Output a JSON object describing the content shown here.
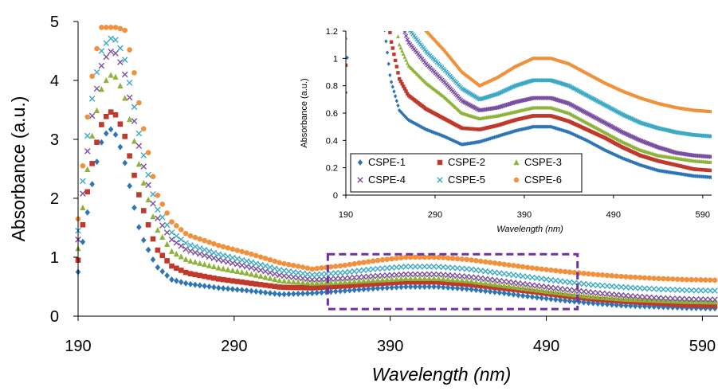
{
  "chart_data": [
    {
      "id": "main",
      "type": "scatter",
      "title": "",
      "xlabel": "Wavelength (nm)",
      "ylabel": "Absorbance (a.u.)",
      "xlim": [
        190,
        600
      ],
      "ylim": [
        0,
        5
      ],
      "x_ticks": [
        190,
        290,
        390,
        490,
        590
      ],
      "y_ticks": [
        0,
        1,
        2,
        3,
        4,
        5
      ],
      "grid": false,
      "legend": "none",
      "annotations": [
        {
          "type": "dashed-rectangle",
          "color": "#7030A0",
          "x_range": [
            350,
            510
          ],
          "y_range": [
            0.12,
            1.05
          ]
        }
      ],
      "series": [
        {
          "name": "CSPE-1",
          "color": "#2E75B6",
          "marker": "diamond",
          "x": [
            190,
            195,
            200,
            205,
            210,
            215,
            220,
            225,
            230,
            240,
            250,
            260,
            280,
            300,
            320,
            340,
            360,
            380,
            400,
            420,
            440,
            460,
            480,
            500,
            520,
            540,
            560,
            580,
            600
          ],
          "y": [
            0.75,
            1.6,
            2.4,
            2.95,
            3.2,
            3.05,
            2.6,
            1.95,
            1.4,
            0.85,
            0.62,
            0.55,
            0.48,
            0.43,
            0.37,
            0.39,
            0.43,
            0.47,
            0.5,
            0.5,
            0.46,
            0.4,
            0.33,
            0.27,
            0.22,
            0.18,
            0.16,
            0.14,
            0.13
          ]
        },
        {
          "name": "CSPE-2",
          "color": "#C0392B",
          "marker": "square",
          "x": [
            190,
            195,
            200,
            205,
            210,
            215,
            220,
            225,
            230,
            240,
            250,
            260,
            280,
            300,
            320,
            340,
            360,
            380,
            400,
            420,
            440,
            460,
            480,
            500,
            520,
            540,
            560,
            580,
            600
          ],
          "y": [
            0.95,
            1.95,
            2.75,
            3.25,
            3.48,
            3.4,
            3.05,
            2.5,
            1.95,
            1.15,
            0.85,
            0.73,
            0.63,
            0.56,
            0.49,
            0.48,
            0.51,
            0.55,
            0.58,
            0.58,
            0.54,
            0.48,
            0.42,
            0.35,
            0.29,
            0.25,
            0.22,
            0.19,
            0.18
          ]
        },
        {
          "name": "CSPE-3",
          "color": "#8DB33B",
          "marker": "triangle",
          "x": [
            190,
            195,
            200,
            205,
            210,
            215,
            220,
            225,
            230,
            240,
            250,
            260,
            280,
            300,
            320,
            340,
            360,
            380,
            400,
            420,
            440,
            460,
            480,
            500,
            520,
            540,
            560,
            580,
            600
          ],
          "y": [
            1.15,
            2.3,
            3.25,
            3.85,
            4.1,
            4.05,
            3.7,
            3.1,
            2.45,
            1.5,
            1.1,
            0.95,
            0.82,
            0.72,
            0.6,
            0.56,
            0.58,
            0.61,
            0.64,
            0.64,
            0.6,
            0.53,
            0.46,
            0.39,
            0.33,
            0.29,
            0.27,
            0.25,
            0.24
          ]
        },
        {
          "name": "CSPE-4",
          "color": "#7B4FA0",
          "marker": "x",
          "x": [
            190,
            195,
            200,
            205,
            210,
            215,
            220,
            225,
            230,
            240,
            250,
            260,
            280,
            300,
            320,
            340,
            360,
            380,
            400,
            420,
            440,
            460,
            480,
            500,
            520,
            540,
            560,
            580,
            600
          ],
          "y": [
            1.3,
            2.6,
            3.6,
            4.25,
            4.5,
            4.45,
            4.1,
            3.45,
            2.75,
            1.7,
            1.3,
            1.12,
            0.96,
            0.83,
            0.69,
            0.62,
            0.64,
            0.68,
            0.71,
            0.71,
            0.67,
            0.6,
            0.53,
            0.46,
            0.4,
            0.35,
            0.31,
            0.29,
            0.28
          ]
        },
        {
          "name": "CSPE-5",
          "color": "#3DA9C4",
          "marker": "x",
          "x": [
            190,
            195,
            200,
            205,
            210,
            215,
            220,
            225,
            230,
            240,
            250,
            260,
            280,
            300,
            320,
            340,
            360,
            380,
            400,
            420,
            440,
            460,
            480,
            500,
            520,
            540,
            560,
            580,
            600
          ],
          "y": [
            1.45,
            2.85,
            3.9,
            4.5,
            4.72,
            4.68,
            4.35,
            3.7,
            2.95,
            1.85,
            1.42,
            1.22,
            1.05,
            0.92,
            0.78,
            0.7,
            0.74,
            0.8,
            0.84,
            0.84,
            0.8,
            0.73,
            0.66,
            0.59,
            0.53,
            0.49,
            0.46,
            0.44,
            0.43
          ]
        },
        {
          "name": "CSPE-6",
          "color": "#F0913D",
          "marker": "circle",
          "x": [
            190,
            195,
            200,
            205,
            210,
            215,
            220,
            225,
            230,
            240,
            250,
            260,
            280,
            300,
            320,
            340,
            360,
            380,
            400,
            420,
            440,
            460,
            480,
            500,
            520,
            540,
            560,
            580,
            600
          ],
          "y": [
            1.65,
            3.15,
            4.3,
            4.9,
            4.9,
            4.9,
            4.85,
            4.3,
            3.45,
            2.1,
            1.6,
            1.38,
            1.2,
            1.06,
            0.9,
            0.8,
            0.86,
            0.94,
            1.0,
            1.0,
            0.96,
            0.89,
            0.82,
            0.76,
            0.71,
            0.67,
            0.64,
            0.62,
            0.61
          ]
        }
      ]
    },
    {
      "id": "inset",
      "type": "scatter",
      "title": "",
      "xlabel": "Wavelength (nm)",
      "ylabel": "Absorbance (a.u.)",
      "xlim": [
        190,
        600
      ],
      "ylim": [
        0,
        1.2
      ],
      "x_ticks": [
        190,
        290,
        390,
        490,
        590
      ],
      "y_ticks": [
        0,
        0.2,
        0.4,
        0.6,
        0.8,
        1,
        1.2
      ],
      "y_tick_labels": [
        "0",
        "0.2",
        "0.4",
        "0.6",
        "0.8",
        "1",
        "1.2"
      ],
      "grid": false,
      "legend": "bottom-left",
      "legend_entries": [
        "CSPE-1",
        "CSPE-2",
        "CSPE-3",
        "CSPE-4",
        "CSPE-5",
        "CSPE-6"
      ],
      "series_ref": "main"
    }
  ]
}
